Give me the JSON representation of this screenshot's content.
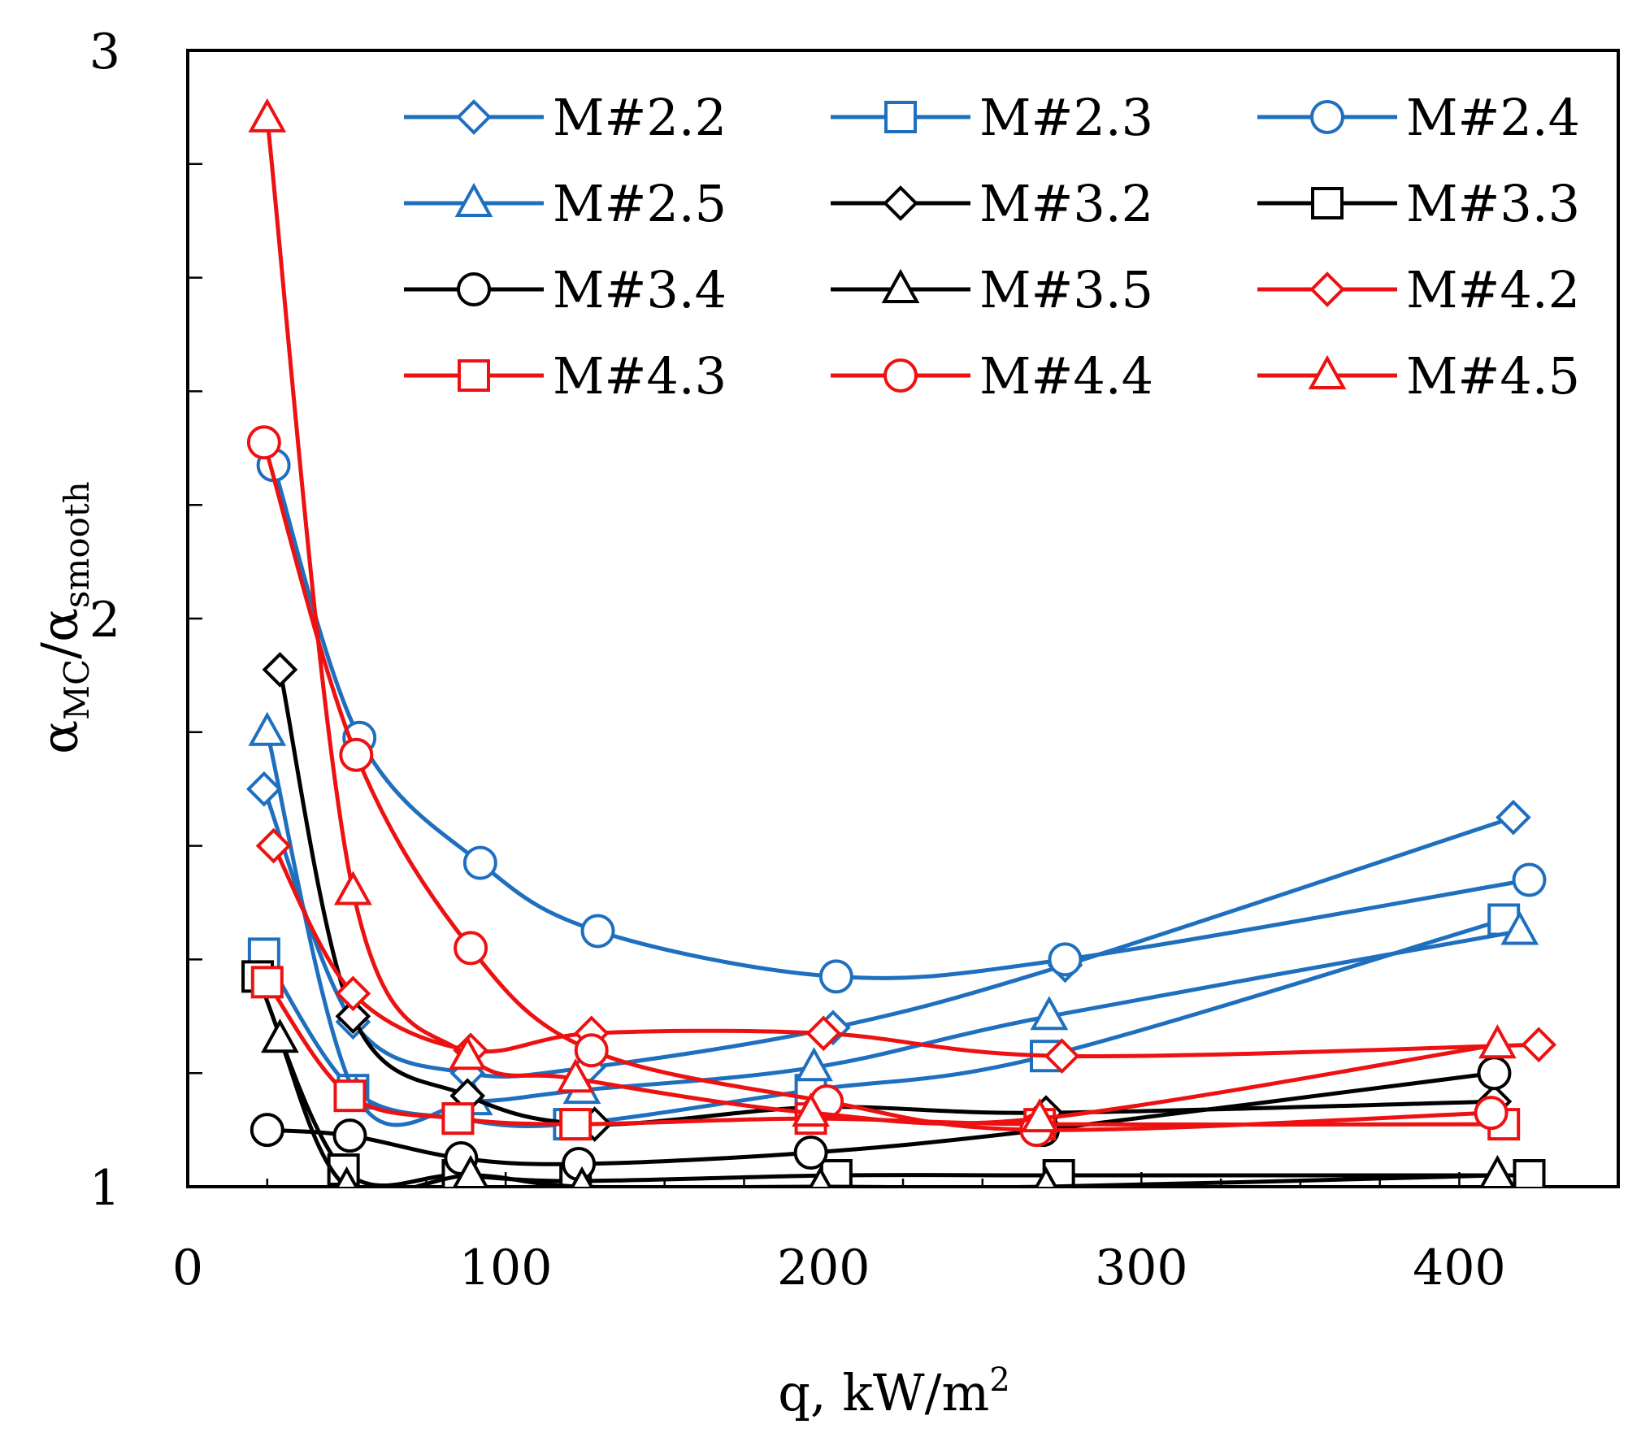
{
  "chart_data": {
    "type": "line",
    "title": "",
    "xlabel": "q, kW/m",
    "xlabel_sup": "2",
    "ylabel": {
      "main": "α",
      "sub1": "MC",
      "sep": "/α",
      "sub2": "smooth"
    },
    "xlim": [
      0,
      450
    ],
    "ylim": [
      1,
      3
    ],
    "xticks": [
      0,
      100,
      200,
      300,
      400
    ],
    "yticks": [
      1,
      2,
      3
    ],
    "xtick_labels": [
      "0",
      "100",
      "200",
      "300",
      "400"
    ],
    "ytick_labels": [
      "1",
      "2",
      "3"
    ],
    "legend_position": "top-right",
    "grid": false,
    "colors": {
      "blue": "#1f6fbf",
      "black": "#000000",
      "red": "#ee1111"
    },
    "series": [
      {
        "name": "M#2.2",
        "color": "#1f6fbf",
        "marker": "diamond",
        "x": [
          24,
          52,
          88,
          126,
          203,
          276,
          417
        ],
        "y": [
          1.7,
          1.29,
          1.2,
          1.21,
          1.28,
          1.39,
          1.65
        ]
      },
      {
        "name": "M#2.3",
        "color": "#1f6fbf",
        "marker": "square",
        "x": [
          24,
          52,
          85,
          120,
          196,
          270,
          414
        ],
        "y": [
          1.41,
          1.17,
          1.12,
          1.11,
          1.17,
          1.23,
          1.47
        ]
      },
      {
        "name": "M#2.4",
        "color": "#1f6fbf",
        "marker": "circle",
        "x": [
          27,
          54,
          92,
          129,
          204,
          276,
          422
        ],
        "y": [
          2.27,
          1.79,
          1.57,
          1.45,
          1.37,
          1.4,
          1.54
        ]
      },
      {
        "name": "M#2.5",
        "color": "#1f6fbf",
        "marker": "triangle",
        "x": [
          25,
          53,
          90,
          124,
          197,
          271,
          419
        ],
        "y": [
          1.8,
          1.16,
          1.15,
          1.17,
          1.21,
          1.3,
          1.45
        ]
      },
      {
        "name": "M#3.2",
        "color": "#000000",
        "marker": "diamond",
        "x": [
          29,
          52,
          88,
          128,
          198,
          270,
          411
        ],
        "y": [
          1.91,
          1.3,
          1.16,
          1.11,
          1.14,
          1.13,
          1.15
        ]
      },
      {
        "name": "M#3.3",
        "color": "#000000",
        "marker": "square",
        "x": [
          22,
          49,
          85,
          122,
          204,
          274,
          422
        ],
        "y": [
          1.37,
          1.03,
          1.02,
          1.01,
          1.02,
          1.02,
          1.02
        ]
      },
      {
        "name": "M#3.4",
        "color": "#000000",
        "marker": "circle",
        "x": [
          25,
          51,
          86,
          123,
          196,
          269,
          411
        ],
        "y": [
          1.1,
          1.09,
          1.05,
          1.04,
          1.06,
          1.1,
          1.2
        ]
      },
      {
        "name": "M#3.5",
        "color": "#000000",
        "marker": "triangle",
        "x": [
          29,
          50,
          89,
          124,
          199,
          270,
          412
        ],
        "y": [
          1.26,
          1.0,
          1.02,
          1.0,
          1.0,
          1.0,
          1.02
        ]
      },
      {
        "name": "M#4.2",
        "color": "#ee1111",
        "marker": "diamond",
        "x": [
          27,
          52,
          89,
          127,
          200,
          275,
          425
        ],
        "y": [
          1.6,
          1.34,
          1.24,
          1.27,
          1.27,
          1.23,
          1.25
        ]
      },
      {
        "name": "M#4.3",
        "color": "#ee1111",
        "marker": "square",
        "x": [
          25,
          51,
          85,
          122,
          196,
          268,
          414
        ],
        "y": [
          1.36,
          1.16,
          1.12,
          1.11,
          1.12,
          1.11,
          1.11
        ]
      },
      {
        "name": "M#4.4",
        "color": "#ee1111",
        "marker": "circle",
        "x": [
          24,
          53,
          89,
          127,
          201,
          267,
          410
        ],
        "y": [
          2.31,
          1.76,
          1.42,
          1.24,
          1.15,
          1.1,
          1.13
        ]
      },
      {
        "name": "M#4.5",
        "color": "#ee1111",
        "marker": "triangle",
        "x": [
          25,
          52,
          88,
          122,
          196,
          268,
          412
        ],
        "y": [
          2.88,
          1.52,
          1.23,
          1.19,
          1.13,
          1.12,
          1.25
        ]
      }
    ]
  }
}
